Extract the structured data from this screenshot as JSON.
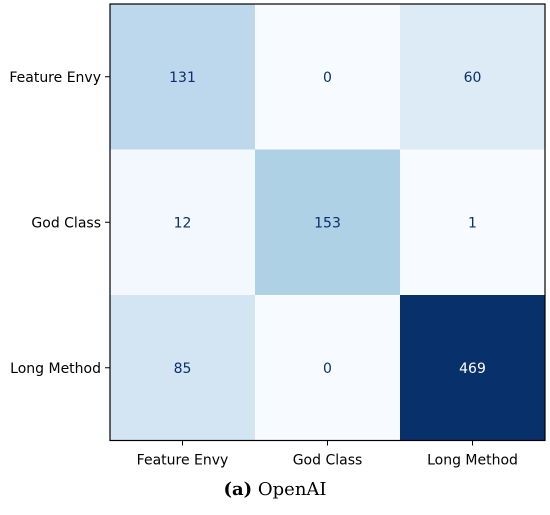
{
  "chart_data": {
    "type": "heatmap",
    "rows": [
      "Feature Envy",
      "God Class",
      "Long Method"
    ],
    "columns": [
      "Feature Envy",
      "God Class",
      "Long Method"
    ],
    "values": [
      [
        131,
        0,
        60
      ],
      [
        12,
        153,
        1
      ],
      [
        85,
        0,
        469
      ]
    ],
    "colormap": "Blues",
    "vmin": 0,
    "vmax": 469,
    "grid": false
  },
  "caption": {
    "label": "(a)",
    "text": "OpenAI"
  },
  "colors": {
    "text_dark": "#08306b",
    "text_light": "#ffffff",
    "frame": "#000000"
  }
}
